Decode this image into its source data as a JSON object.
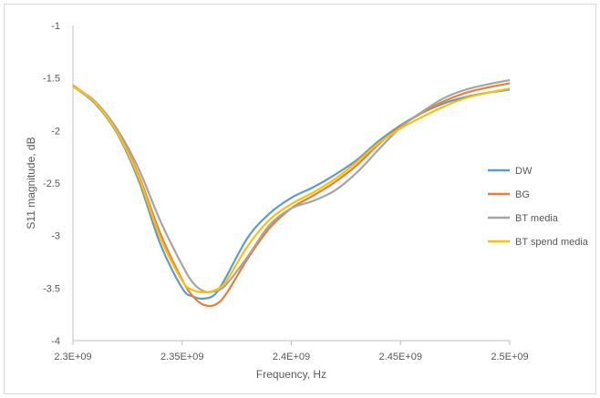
{
  "chart_data": {
    "type": "line",
    "title": "",
    "xlabel": "Frequency, Hz",
    "ylabel": "S11 magnitude, dB",
    "xlim": [
      2300000000,
      2500000000
    ],
    "ylim": [
      -4,
      -1
    ],
    "x_ticks": [
      2300000000,
      2350000000,
      2400000000,
      2450000000,
      2500000000
    ],
    "x_tick_labels": [
      "2.3E+09",
      "2.35E+09",
      "2.4E+09",
      "2.45E+09",
      "2.5E+09"
    ],
    "y_ticks": [
      -1,
      -1.5,
      -2,
      -2.5,
      -3,
      -3.5,
      -4
    ],
    "y_tick_labels": [
      "-1",
      "-1.5",
      "-2",
      "-2.5",
      "-3",
      "-3.5",
      "-4"
    ],
    "grid": false,
    "legend_position": "right",
    "series": [
      {
        "name": "DW",
        "color": "#5b9bd5",
        "x": [
          2300000000,
          2310000000,
          2320000000,
          2330000000,
          2340000000,
          2350000000,
          2355000000,
          2360000000,
          2365000000,
          2370000000,
          2380000000,
          2390000000,
          2400000000,
          2410000000,
          2420000000,
          2430000000,
          2440000000,
          2450000000,
          2460000000,
          2470000000,
          2480000000,
          2490000000,
          2500000000
        ],
        "y": [
          -1.58,
          -1.74,
          -2.02,
          -2.47,
          -3.08,
          -3.5,
          -3.58,
          -3.6,
          -3.56,
          -3.4,
          -3.02,
          -2.79,
          -2.64,
          -2.54,
          -2.42,
          -2.28,
          -2.1,
          -1.95,
          -1.83,
          -1.74,
          -1.68,
          -1.64,
          -1.61
        ]
      },
      {
        "name": "BG",
        "color": "#ed7d31",
        "x": [
          2300000000,
          2310000000,
          2320000000,
          2330000000,
          2340000000,
          2350000000,
          2355000000,
          2360000000,
          2365000000,
          2370000000,
          2380000000,
          2390000000,
          2400000000,
          2410000000,
          2420000000,
          2430000000,
          2440000000,
          2450000000,
          2460000000,
          2470000000,
          2480000000,
          2490000000,
          2500000000
        ],
        "y": [
          -1.57,
          -1.73,
          -2.0,
          -2.42,
          -2.98,
          -3.42,
          -3.58,
          -3.66,
          -3.66,
          -3.56,
          -3.22,
          -2.93,
          -2.74,
          -2.62,
          -2.49,
          -2.33,
          -2.13,
          -1.96,
          -1.83,
          -1.72,
          -1.64,
          -1.59,
          -1.55
        ]
      },
      {
        "name": "BT media",
        "color": "#a5a5a5",
        "x": [
          2300000000,
          2310000000,
          2320000000,
          2330000000,
          2340000000,
          2350000000,
          2355000000,
          2360000000,
          2365000000,
          2370000000,
          2380000000,
          2390000000,
          2400000000,
          2410000000,
          2420000000,
          2430000000,
          2440000000,
          2450000000,
          2460000000,
          2470000000,
          2480000000,
          2490000000,
          2500000000
        ],
        "y": [
          -1.58,
          -1.72,
          -1.98,
          -2.36,
          -2.86,
          -3.28,
          -3.45,
          -3.53,
          -3.53,
          -3.47,
          -3.2,
          -2.9,
          -2.74,
          -2.67,
          -2.57,
          -2.4,
          -2.18,
          -1.97,
          -1.82,
          -1.69,
          -1.61,
          -1.56,
          -1.52
        ]
      },
      {
        "name": "BT spend media",
        "color": "#ffc000",
        "x": [
          2300000000,
          2310000000,
          2320000000,
          2330000000,
          2340000000,
          2350000000,
          2355000000,
          2360000000,
          2365000000,
          2370000000,
          2380000000,
          2390000000,
          2400000000,
          2410000000,
          2420000000,
          2430000000,
          2440000000,
          2450000000,
          2460000000,
          2470000000,
          2480000000,
          2490000000,
          2500000000
        ],
        "y": [
          -1.58,
          -1.73,
          -2.01,
          -2.44,
          -3.02,
          -3.43,
          -3.52,
          -3.54,
          -3.52,
          -3.44,
          -3.1,
          -2.85,
          -2.7,
          -2.59,
          -2.46,
          -2.3,
          -2.12,
          -1.98,
          -1.87,
          -1.77,
          -1.69,
          -1.64,
          -1.6
        ]
      }
    ]
  }
}
